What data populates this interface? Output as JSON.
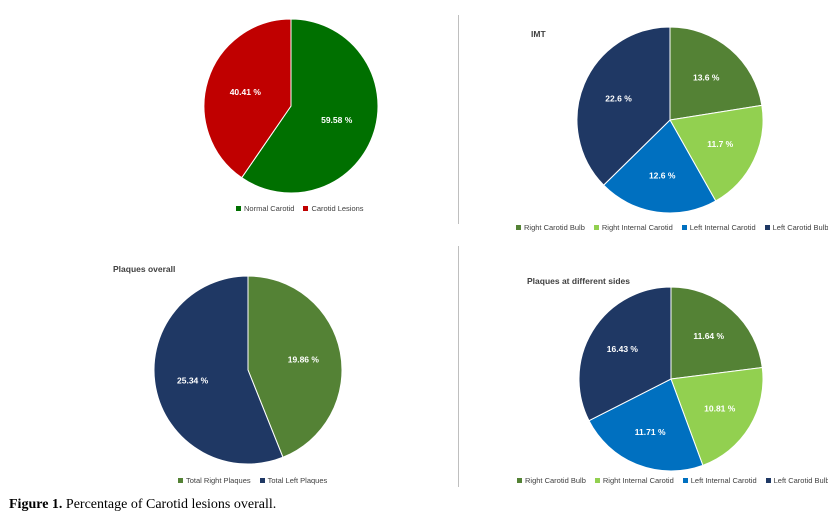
{
  "chart_data": [
    {
      "type": "pie",
      "title": "",
      "categories": [
        "Normal Carotid",
        "Carotid Lesions"
      ],
      "values": [
        59.58,
        40.41
      ],
      "labels": [
        "59.58 %",
        "40.41 %"
      ],
      "colors": [
        "#007000",
        "#c00000"
      ],
      "legend": "bottom"
    },
    {
      "type": "pie",
      "title": "IMT",
      "categories": [
        "Right Carotid Bulb",
        "Right Internal Carotid",
        "Left Internal Carotid",
        "Left Carotid Bulb"
      ],
      "values": [
        13.6,
        11.7,
        12.6,
        22.6
      ],
      "labels": [
        "13.6 %",
        "11.7 %",
        "12.6 %",
        "22.6 %"
      ],
      "colors": [
        "#548235",
        "#92d050",
        "#0070c0",
        "#1f3864"
      ],
      "legend": "bottom"
    },
    {
      "type": "pie",
      "title": "Plaques overall",
      "categories": [
        "Total Right Plaques",
        "Total Left Plaques"
      ],
      "values": [
        19.86,
        25.34
      ],
      "labels": [
        "19.86 %",
        "25.34 %"
      ],
      "colors": [
        "#548235",
        "#1f3864"
      ],
      "legend": "bottom"
    },
    {
      "type": "pie",
      "title": "Plaques at different sides",
      "categories": [
        "Right Carotid Bulb",
        "Right Internal Carotid",
        "Left Internal Carotid",
        "Left Carotid Bulb"
      ],
      "values": [
        11.64,
        10.81,
        11.71,
        16.43
      ],
      "labels": [
        "11.64 %",
        "10.81 %",
        "11.71 %",
        "16.43 %"
      ],
      "colors": [
        "#548235",
        "#92d050",
        "#0070c0",
        "#1f3864"
      ],
      "legend": "bottom"
    }
  ],
  "caption": {
    "prefix": "Figure 1.",
    "text": " Percentage of Carotid lesions overall."
  }
}
